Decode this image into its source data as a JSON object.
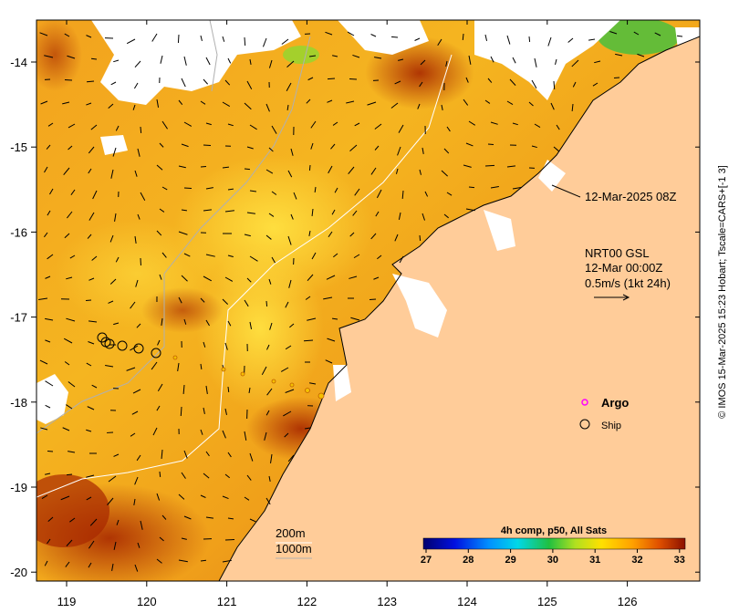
{
  "map": {
    "timestamp_label": "12-Mar-2025 08Z",
    "current_info": {
      "model": "NRT00 GSL",
      "time": "12-Mar 00:00Z",
      "scale": "0.5m/s (1kt 24h)"
    },
    "legend": {
      "argo_label": "Argo",
      "ship_label": "Ship",
      "argo_color": "#ff00ff"
    },
    "contours": {
      "c200_label": "200m",
      "c1000_label": "1000m"
    },
    "colorbar": {
      "title": "4h comp, p50, All Sats",
      "ticks": [
        "27",
        "28",
        "29",
        "30",
        "31",
        "32",
        "33"
      ],
      "colors": [
        "#00008b",
        "#0000ff",
        "#00aaff",
        "#00e5ee",
        "#22c84a",
        "#a6e22e",
        "#ffe000",
        "#ffb000",
        "#f07800",
        "#c03000",
        "#8b1a00"
      ]
    },
    "axes": {
      "x_ticks": [
        "119",
        "120",
        "121",
        "122",
        "123",
        "124",
        "125",
        "126"
      ],
      "y_ticks": [
        "-14",
        "-15",
        "-16",
        "-17",
        "-18",
        "-19",
        "-20"
      ]
    },
    "credit": "© IMOS 15-Mar-2025 15:23 Hobart; Tscale=CARS+[-1 3]",
    "colors": {
      "land": "#ffcc99",
      "sea_warm": "#f0a020",
      "sea_hot": "#b83200",
      "sea_cool": "#ffd040"
    }
  }
}
